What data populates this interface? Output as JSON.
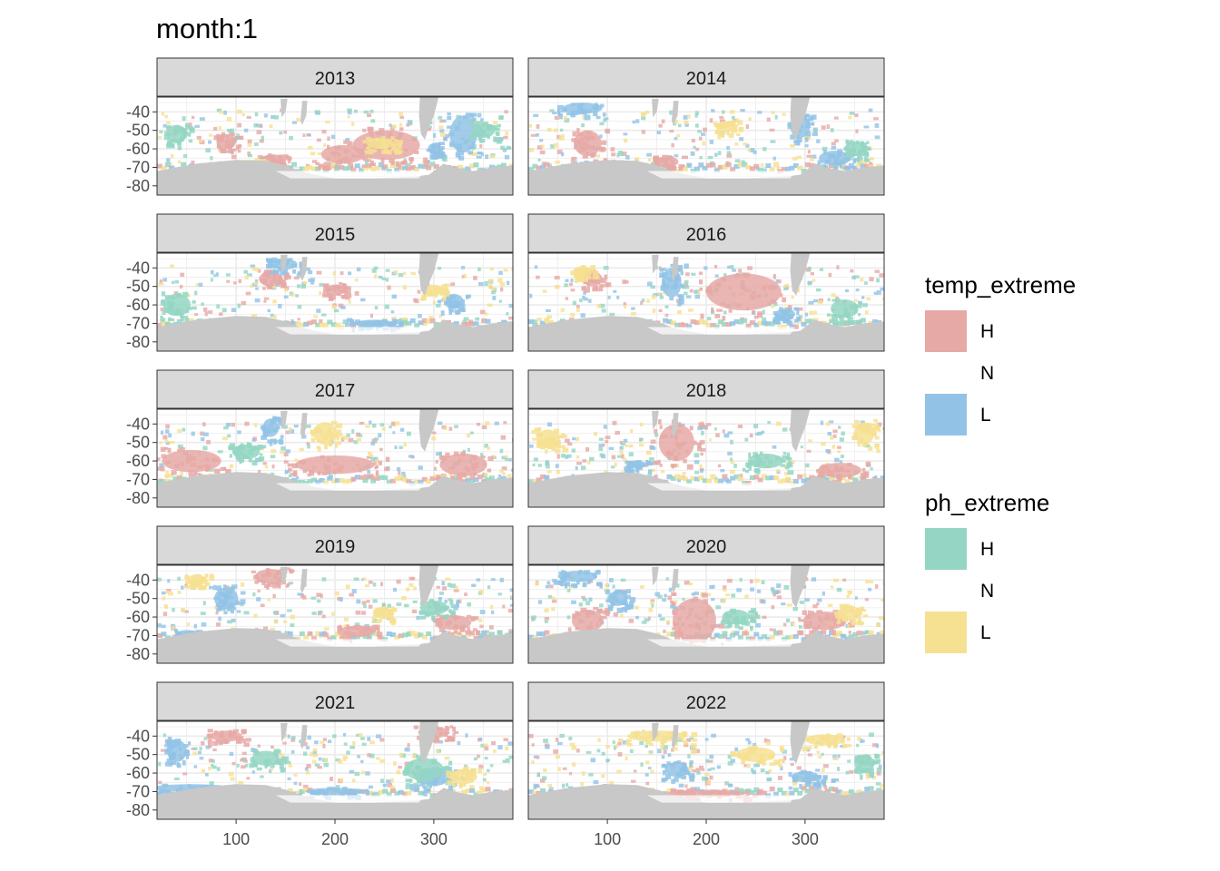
{
  "chart_data": {
    "type": "heatmap",
    "title": "month:1",
    "facet_var": "year",
    "facets": [
      {
        "label": "2013",
        "temp_H": [
          [
            252,
            -58,
            34,
            8
          ],
          [
            208,
            -63,
            22,
            5
          ],
          [
            137,
            -66,
            12,
            3
          ],
          [
            90,
            -56,
            10,
            4
          ]
        ],
        "temp_L": [
          [
            330,
            -52,
            14,
            10
          ],
          [
            300,
            -60,
            6,
            3
          ]
        ],
        "ph_H": [
          [
            40,
            -52,
            10,
            5
          ],
          [
            350,
            -50,
            12,
            4
          ]
        ],
        "ph_L": [
          [
            246,
            -57,
            14,
            3
          ],
          [
            120,
            -68,
            10,
            2
          ]
        ]
      },
      {
        "label": "2014",
        "temp_H": [
          [
            80,
            -57,
            14,
            7
          ],
          [
            160,
            -67,
            12,
            3
          ]
        ],
        "temp_L": [
          [
            295,
            -48,
            10,
            6
          ],
          [
            330,
            -65,
            16,
            4
          ],
          [
            75,
            -38,
            20,
            3
          ]
        ],
        "ph_H": [
          [
            350,
            -60,
            10,
            4
          ]
        ],
        "ph_L": [
          [
            220,
            -48,
            10,
            3
          ]
        ]
      },
      {
        "label": "2015",
        "temp_H": [
          [
            135,
            -46,
            12,
            4
          ],
          [
            200,
            -52,
            10,
            3
          ]
        ],
        "temp_L": [
          [
            148,
            -38,
            14,
            3
          ],
          [
            320,
            -58,
            10,
            4
          ],
          [
            240,
            -70,
            20,
            2
          ]
        ],
        "ph_H": [
          [
            40,
            -60,
            14,
            6
          ]
        ],
        "ph_L": [
          [
            300,
            -52,
            10,
            3
          ]
        ]
      },
      {
        "label": "2016",
        "temp_H": [
          [
            238,
            -53,
            38,
            10
          ],
          [
            85,
            -46,
            10,
            4
          ]
        ],
        "temp_L": [
          [
            165,
            -48,
            10,
            8
          ],
          [
            280,
            -65,
            10,
            3
          ]
        ],
        "ph_H": [
          [
            340,
            -62,
            14,
            5
          ]
        ],
        "ph_L": [
          [
            75,
            -42,
            10,
            3
          ]
        ]
      },
      {
        "label": "2017",
        "temp_H": [
          [
            55,
            -60,
            30,
            6
          ],
          [
            200,
            -62,
            40,
            5
          ],
          [
            330,
            -62,
            24,
            6
          ]
        ],
        "temp_L": [
          [
            135,
            -42,
            8,
            5
          ]
        ],
        "ph_H": [
          [
            110,
            -55,
            14,
            4
          ]
        ],
        "ph_L": [
          [
            190,
            -45,
            12,
            6
          ]
        ]
      },
      {
        "label": "2018",
        "temp_H": [
          [
            170,
            -50,
            18,
            10
          ],
          [
            335,
            -65,
            22,
            4
          ]
        ],
        "temp_L": [
          [
            130,
            -62,
            10,
            2
          ]
        ],
        "ph_H": [
          [
            260,
            -60,
            18,
            4
          ]
        ],
        "ph_L": [
          [
            40,
            -48,
            12,
            5
          ],
          [
            360,
            -45,
            10,
            6
          ]
        ]
      },
      {
        "label": "2019",
        "temp_H": [
          [
            135,
            -38,
            16,
            4
          ],
          [
            220,
            -68,
            18,
            3
          ],
          [
            320,
            -63,
            18,
            4
          ]
        ],
        "temp_L": [
          [
            90,
            -50,
            12,
            6
          ],
          [
            50,
            -70,
            12,
            3
          ]
        ],
        "ph_H": [
          [
            300,
            -55,
            14,
            4
          ]
        ],
        "ph_L": [
          [
            60,
            -40,
            10,
            3
          ],
          [
            250,
            -58,
            10,
            3
          ]
        ]
      },
      {
        "label": "2020",
        "temp_H": [
          [
            188,
            -62,
            22,
            12
          ],
          [
            80,
            -62,
            16,
            6
          ],
          [
            320,
            -62,
            22,
            5
          ]
        ],
        "temp_L": [
          [
            70,
            -38,
            20,
            3
          ],
          [
            110,
            -50,
            10,
            4
          ]
        ],
        "ph_H": [
          [
            230,
            -60,
            14,
            4
          ]
        ],
        "ph_L": [
          [
            345,
            -58,
            12,
            4
          ]
        ]
      },
      {
        "label": "2021",
        "temp_H": [
          [
            90,
            -40,
            16,
            3
          ],
          [
            300,
            -38,
            16,
            3
          ]
        ],
        "temp_L": [
          [
            55,
            -68,
            40,
            2
          ],
          [
            200,
            -70,
            30,
            2
          ],
          [
            300,
            -62,
            16,
            5
          ],
          [
            40,
            -48,
            10,
            6
          ]
        ],
        "ph_H": [
          [
            290,
            -58,
            20,
            6
          ],
          [
            130,
            -52,
            14,
            4
          ]
        ],
        "ph_L": [
          [
            330,
            -62,
            14,
            4
          ]
        ]
      },
      {
        "label": "2022",
        "temp_H": [
          [
            200,
            -71,
            40,
            2
          ]
        ],
        "temp_L": [
          [
            170,
            -58,
            12,
            4
          ],
          [
            300,
            -62,
            14,
            3
          ]
        ],
        "ph_H": [
          [
            360,
            -55,
            10,
            5
          ]
        ],
        "ph_L": [
          [
            150,
            -40,
            30,
            3
          ],
          [
            250,
            -50,
            20,
            4
          ],
          [
            320,
            -42,
            20,
            3
          ]
        ]
      }
    ],
    "x_ticks": [
      100,
      200,
      300
    ],
    "y_ticks": [
      -40,
      -50,
      -60,
      -70,
      -80
    ],
    "xlim": [
      20,
      380
    ],
    "ylim": [
      -85,
      -32
    ],
    "grid": true,
    "legend_position": "right",
    "legends": [
      {
        "title": "temp_extreme",
        "items": [
          {
            "label": "H",
            "color": "#e6a9a6"
          },
          {
            "label": "N",
            "color": "none"
          },
          {
            "label": "L",
            "color": "#92c3e6"
          }
        ]
      },
      {
        "title": "ph_extreme",
        "items": [
          {
            "label": "H",
            "color": "#94d6c3"
          },
          {
            "label": "N",
            "color": "none"
          },
          {
            "label": "L",
            "color": "#f6e092"
          }
        ]
      }
    ],
    "colors": {
      "temp_H": "#e6a9a6",
      "temp_L": "#92c3e6",
      "ph_H": "#94d6c3",
      "ph_L": "#f6e092",
      "land": "#c8c8c8",
      "strip": "#d9d9d9",
      "grid": "#ebebeb"
    }
  }
}
